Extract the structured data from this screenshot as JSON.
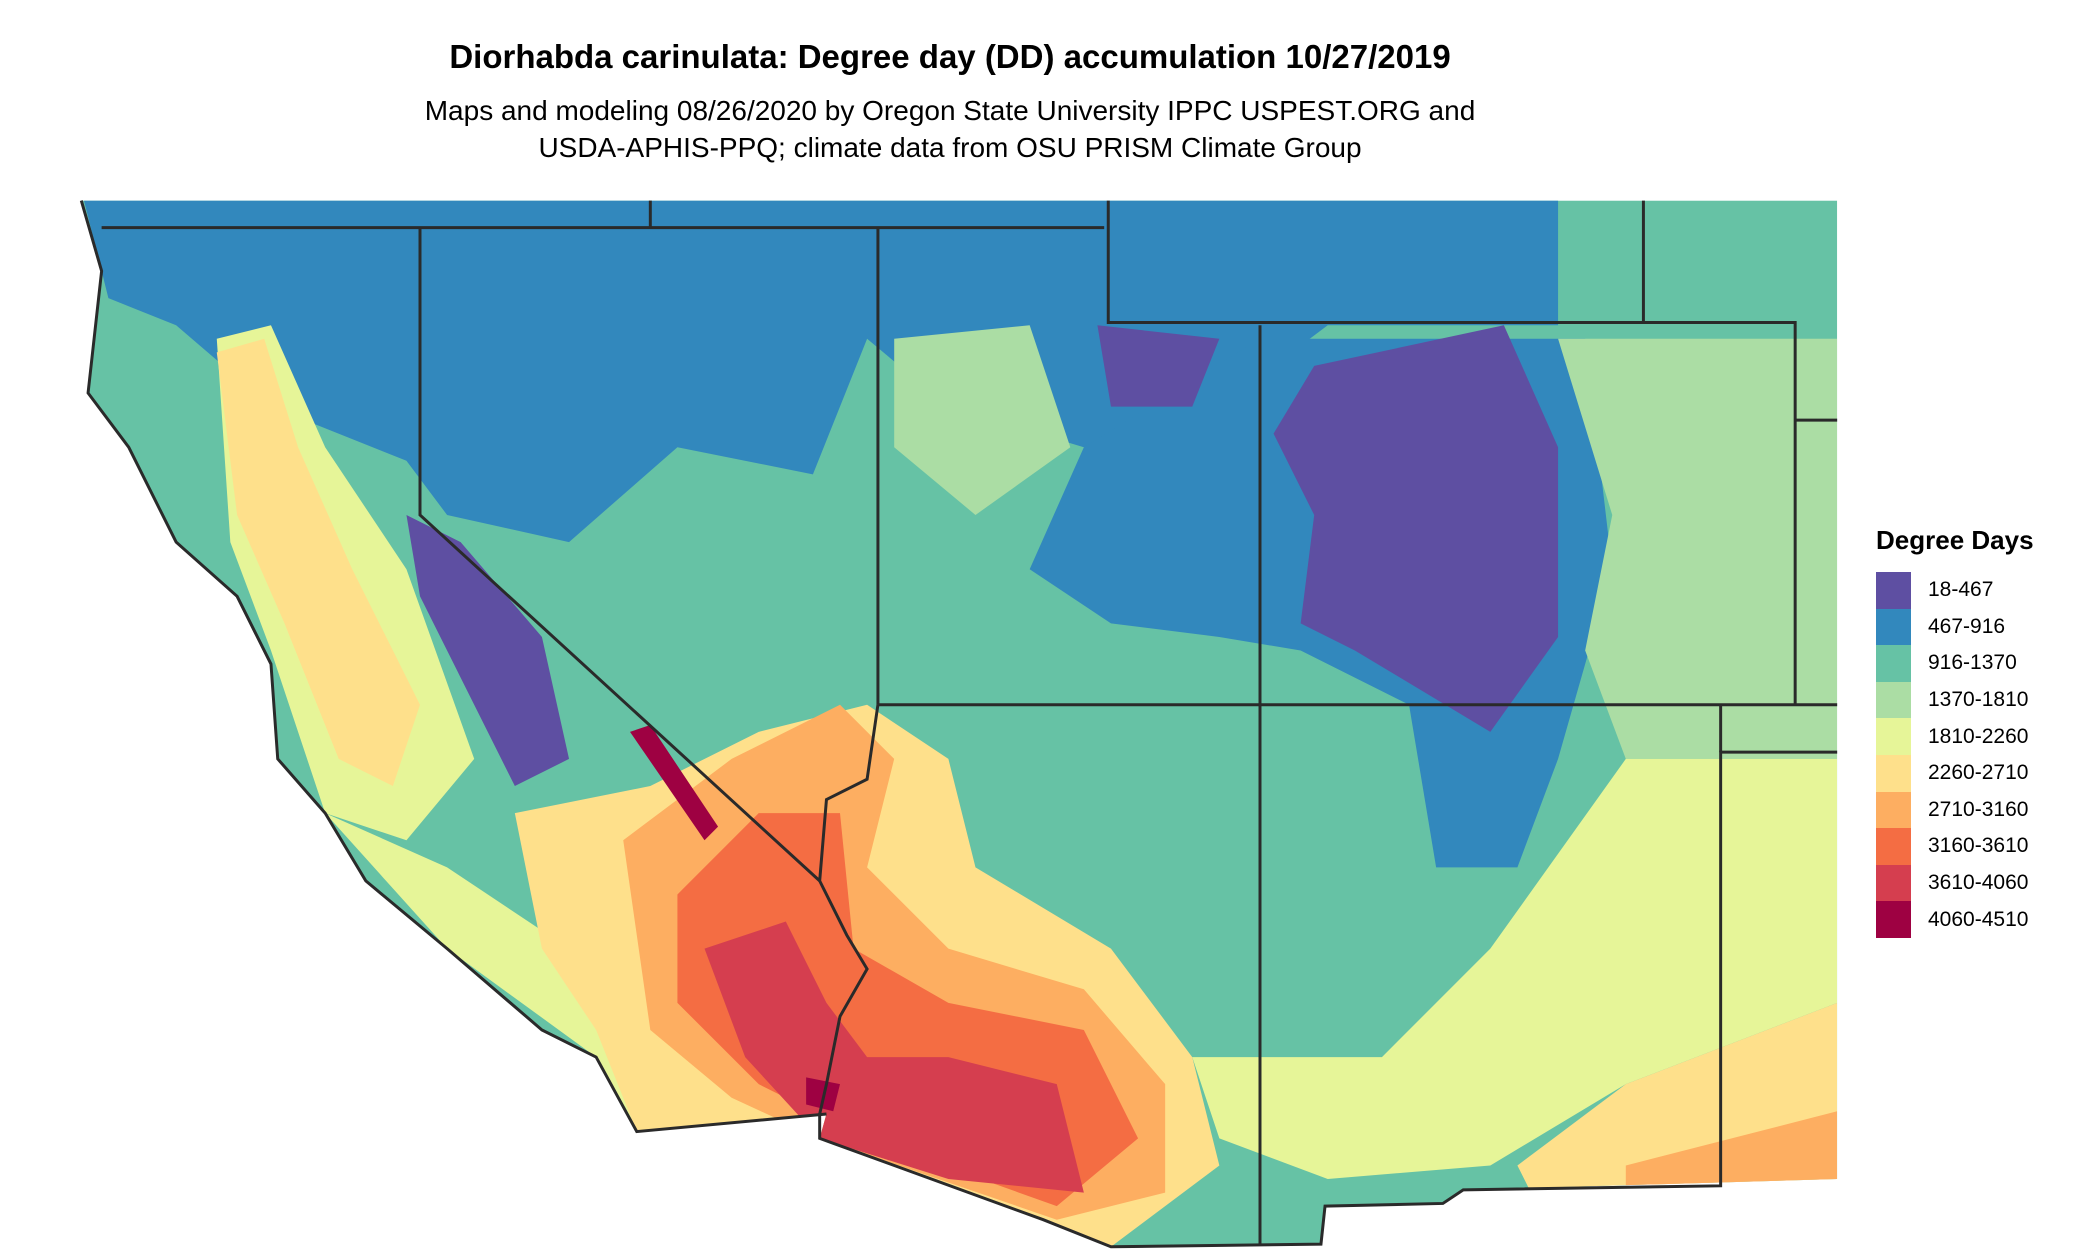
{
  "title": "Diorhabda carinulata: Degree day (DD) accumulation 10/27/2019",
  "subtitle_line1": "Maps and modeling 08/26/2020 by Oregon State University IPPC USPEST.ORG and",
  "subtitle_line2": "USDA-APHIS-PPQ; climate data from OSU PRISM Climate Group",
  "legend": {
    "title": "Degree Days",
    "items": [
      {
        "label": "18-467",
        "color": "#5e4fa2"
      },
      {
        "label": "467-916",
        "color": "#3288bd"
      },
      {
        "label": "916-1370",
        "color": "#66c2a5"
      },
      {
        "label": "1370-1810",
        "color": "#abdda4"
      },
      {
        "label": "1810-2260",
        "color": "#e6f598"
      },
      {
        "label": "2260-2710",
        "color": "#fee08b"
      },
      {
        "label": "2710-3160",
        "color": "#fdae61"
      },
      {
        "label": "3160-3610",
        "color": "#f46d43"
      },
      {
        "label": "3610-4060",
        "color": "#d53e4f"
      },
      {
        "label": "4060-4510",
        "color": "#9e0142"
      }
    ]
  }
}
